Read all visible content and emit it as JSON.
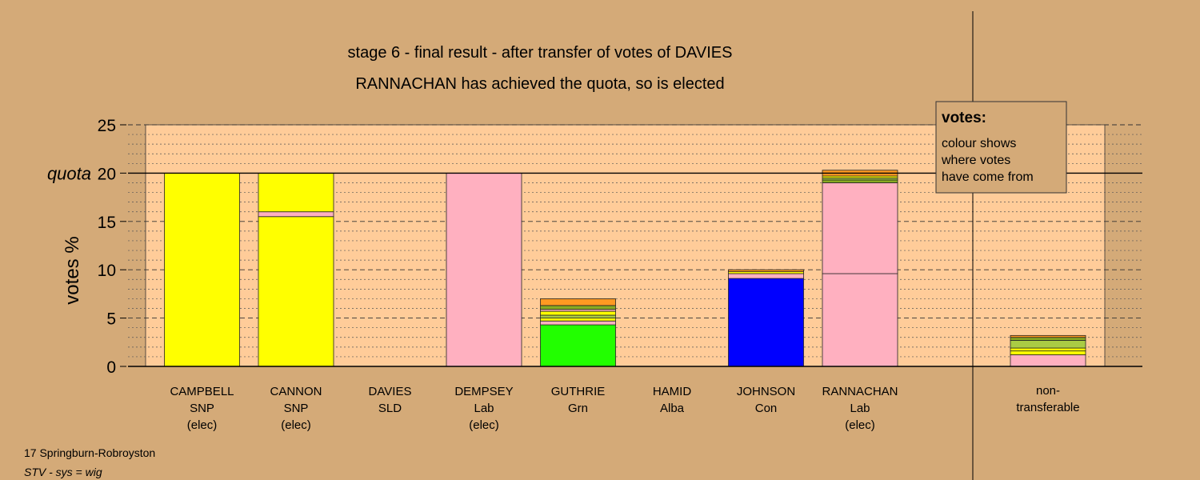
{
  "chart_data": {
    "type": "bar",
    "stacked": true,
    "title": "stage 6 - final result - after transfer of votes of DAVIES",
    "subtitle": "RANNACHAN has achieved the quota, so is elected",
    "ylabel": "votes %",
    "ylim": [
      0,
      25
    ],
    "yticks": [
      0,
      5,
      10,
      15,
      20,
      25
    ],
    "quota": {
      "value": 20,
      "label": "quota"
    },
    "grid": "dashed major, dotted minor",
    "legend": {
      "title": "votes:",
      "lines": [
        "colour shows",
        "where votes",
        "have come from"
      ],
      "position": "top-right"
    },
    "colors": {
      "SNP": "#ffff00",
      "Lab": "#ffb0c0",
      "Grn": "#22ff00",
      "Con": "#0000ff",
      "SLD": "#ff9922",
      "Alba": "#88aa22",
      "background": "#d4aa78",
      "plot_area": "#ffcc99"
    },
    "candidates": [
      {
        "name": "CAMPBELL",
        "party": "SNP",
        "status": "(elec)",
        "segments": [
          {
            "value": 20.0,
            "color": "#ffff00"
          }
        ]
      },
      {
        "name": "CANNON",
        "party": "SNP",
        "status": "(elec)",
        "segments": [
          {
            "value": 15.5,
            "color": "#ffff00"
          },
          {
            "value": 0.5,
            "color": "#ffb0c0"
          },
          {
            "value": 4.0,
            "color": "#ffff00"
          }
        ]
      },
      {
        "name": "DAVIES",
        "party": "SLD",
        "status": "",
        "segments": []
      },
      {
        "name": "DEMPSEY",
        "party": "Lab",
        "status": "(elec)",
        "segments": [
          {
            "value": 20.0,
            "color": "#ffb0c0"
          }
        ]
      },
      {
        "name": "GUTHRIE",
        "party": "Grn",
        "status": "",
        "segments": [
          {
            "value": 4.3,
            "color": "#22ff00"
          },
          {
            "value": 0.4,
            "color": "#ffb0c0"
          },
          {
            "value": 0.3,
            "color": "#ffff00"
          },
          {
            "value": 0.3,
            "color": "#aacc44"
          },
          {
            "value": 0.4,
            "color": "#ffff00"
          },
          {
            "value": 0.2,
            "color": "#ffb0c0"
          },
          {
            "value": 0.4,
            "color": "#88aa22"
          },
          {
            "value": 0.7,
            "color": "#ff9922"
          }
        ]
      },
      {
        "name": "HAMID",
        "party": "Alba",
        "status": "",
        "segments": []
      },
      {
        "name": "JOHNSON",
        "party": "Con",
        "status": "",
        "segments": [
          {
            "value": 9.1,
            "color": "#0000ff"
          },
          {
            "value": 0.5,
            "color": "#ffb0c0"
          },
          {
            "value": 0.2,
            "color": "#ffff00"
          },
          {
            "value": 0.2,
            "color": "#ff9922"
          }
        ]
      },
      {
        "name": "RANNACHAN",
        "party": "Lab",
        "status": "(elec)",
        "segments": [
          {
            "value": 9.6,
            "color": "#ffb0c0"
          },
          {
            "value": 9.4,
            "color": "#ffb0c0"
          },
          {
            "value": 0.3,
            "color": "#88aa22"
          },
          {
            "value": 0.2,
            "color": "#aacc44"
          },
          {
            "value": 0.2,
            "color": "#ffff00"
          },
          {
            "value": 0.6,
            "color": "#ff9922"
          }
        ]
      }
    ],
    "non_transferable": {
      "label_lines": [
        "non-",
        "transferable"
      ],
      "segments": [
        {
          "value": 1.2,
          "color": "#ffb0c0"
        },
        {
          "value": 0.4,
          "color": "#ffff00"
        },
        {
          "value": 0.3,
          "color": "#ffff00"
        },
        {
          "value": 0.8,
          "color": "#aacc44"
        },
        {
          "value": 0.3,
          "color": "#88aa22"
        },
        {
          "value": 0.2,
          "color": "#ff9922"
        }
      ]
    }
  },
  "footer": {
    "ward": "17 Springburn-Robroyston",
    "system": "STV - sys = wig"
  }
}
